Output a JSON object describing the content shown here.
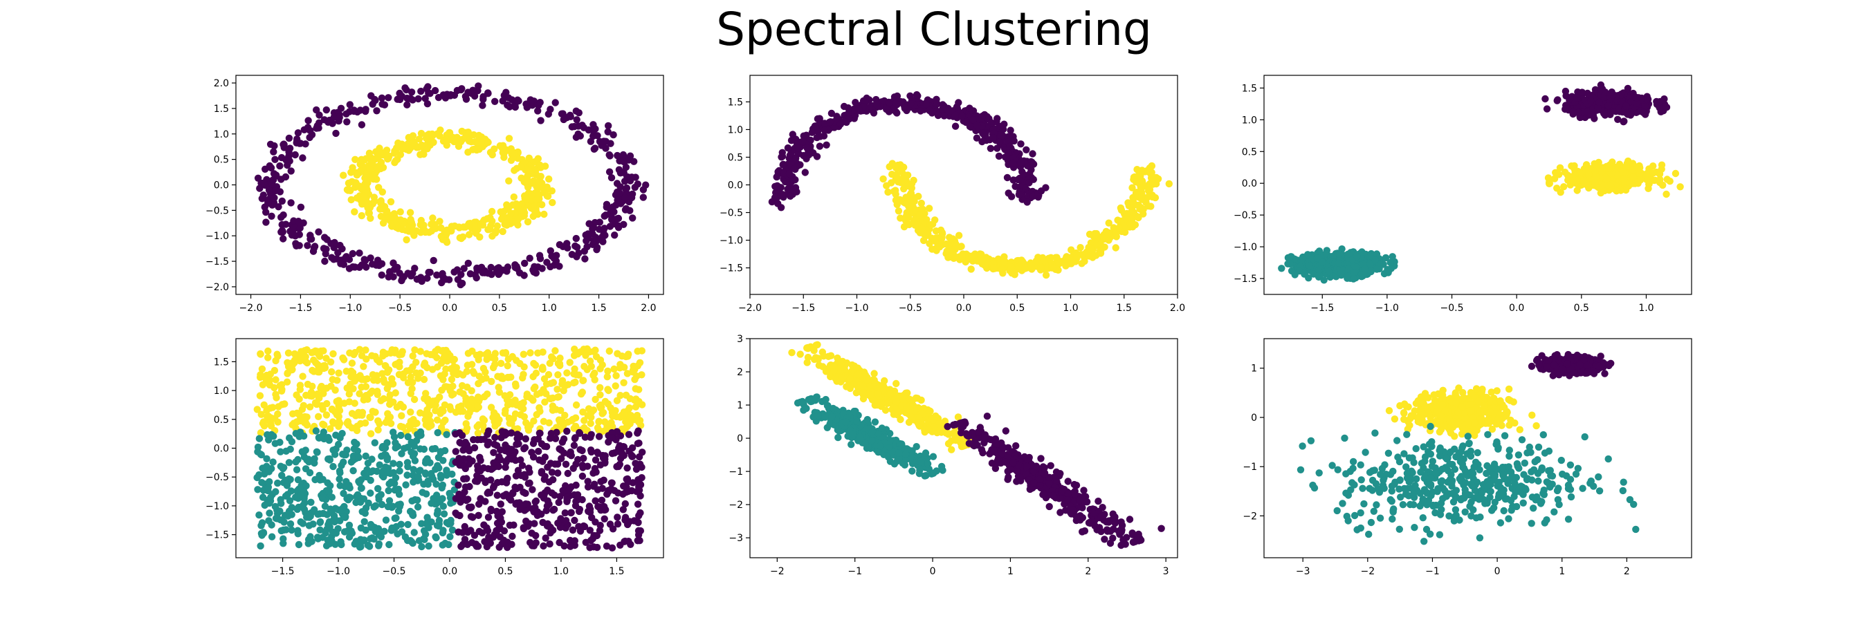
{
  "title": "Spectral Clustering",
  "colors": {
    "purple": "#440154",
    "teal": "#21918c",
    "yellow": "#fde725",
    "axis": "#000000"
  },
  "chart_data": [
    {
      "type": "scatter",
      "dataset": "concentric circles",
      "xlim": [
        -2.15,
        2.15
      ],
      "ylim": [
        -2.15,
        2.15
      ],
      "xticks": [
        -2.0,
        -1.5,
        -1.0,
        -0.5,
        0.0,
        0.5,
        1.0,
        1.5,
        2.0
      ],
      "yticks": [
        -2.0,
        -1.5,
        -1.0,
        -0.5,
        0.0,
        0.5,
        1.0,
        1.5,
        2.0
      ],
      "clusters": [
        {
          "color": "purple",
          "shape": "ring",
          "center": [
            0,
            0
          ],
          "rx": 1.78,
          "ry": 1.78,
          "noise": 0.09,
          "n": 500
        },
        {
          "color": "yellow",
          "shape": "ring",
          "center": [
            0,
            0
          ],
          "rx": 0.88,
          "ry": 0.88,
          "noise": 0.09,
          "n": 500
        }
      ]
    },
    {
      "type": "scatter",
      "dataset": "two moons",
      "xlim": [
        -2.0,
        2.0
      ],
      "ylim": [
        -1.98,
        1.98
      ],
      "xticks": [
        -2.0,
        -1.5,
        -1.0,
        -0.5,
        0.0,
        0.5,
        1.0,
        1.5,
        2.0
      ],
      "yticks": [
        -1.5,
        -1.0,
        -0.5,
        0.0,
        0.5,
        1.0,
        1.5
      ],
      "clusters": [
        {
          "color": "purple",
          "shape": "arc",
          "center": [
            -0.55,
            -0.3
          ],
          "rx": 1.15,
          "ry": 1.78,
          "a0": 0,
          "a1": 180,
          "noise": 0.07,
          "n": 500
        },
        {
          "color": "yellow",
          "shape": "arc",
          "center": [
            0.55,
            0.3
          ],
          "rx": 1.15,
          "ry": 1.78,
          "a0": 180,
          "a1": 360,
          "noise": 0.07,
          "n": 500
        }
      ]
    },
    {
      "type": "scatter",
      "dataset": "anisotropic blobs",
      "xlim": [
        -1.95,
        1.35
      ],
      "ylim": [
        -1.75,
        1.7
      ],
      "xticks": [
        -1.5,
        -1.0,
        -0.5,
        0.0,
        0.5,
        1.0
      ],
      "yticks": [
        -1.5,
        -1.0,
        -0.5,
        0.0,
        0.5,
        1.0,
        1.5
      ],
      "clusters": [
        {
          "color": "purple",
          "shape": "blob",
          "center": [
            0.72,
            1.25
          ],
          "sx": 0.17,
          "sy": 0.09,
          "n": 450
        },
        {
          "color": "yellow",
          "shape": "blob",
          "center": [
            0.72,
            0.1
          ],
          "sx": 0.17,
          "sy": 0.09,
          "n": 450
        },
        {
          "color": "teal",
          "shape": "blob",
          "center": [
            -1.38,
            -1.28
          ],
          "sx": 0.17,
          "sy": 0.09,
          "n": 450
        }
      ]
    },
    {
      "type": "scatter",
      "dataset": "uniform square",
      "xlim": [
        -1.92,
        1.92
      ],
      "ylim": [
        -1.9,
        1.9
      ],
      "xticks": [
        -1.5,
        -1.0,
        -0.5,
        0.0,
        0.5,
        1.0,
        1.5
      ],
      "yticks": [
        -1.5,
        -1.0,
        -0.5,
        0.0,
        0.5,
        1.0,
        1.5
      ],
      "clusters": [
        {
          "color": "yellow",
          "shape": "region",
          "xrange": [
            -1.73,
            1.73
          ],
          "yrange": [
            0.25,
            1.73
          ],
          "n": 750
        },
        {
          "color": "teal",
          "shape": "region",
          "xrange": [
            -1.73,
            0.05
          ],
          "yrange": [
            -1.73,
            0.3
          ],
          "n": 520
        },
        {
          "color": "purple",
          "shape": "region",
          "xrange": [
            0.05,
            1.73
          ],
          "yrange": [
            -1.73,
            0.3
          ],
          "n": 520
        }
      ]
    },
    {
      "type": "scatter",
      "dataset": "elongated diagonal blobs",
      "xlim": [
        -2.35,
        3.15
      ],
      "ylim": [
        -3.6,
        3.0
      ],
      "xticks": [
        -2,
        -1,
        0,
        1,
        2,
        3
      ],
      "yticks": [
        -3,
        -2,
        -1,
        0,
        1,
        2,
        3
      ],
      "clusters": [
        {
          "color": "yellow",
          "shape": "line",
          "from": [
            -1.5,
            2.5
          ],
          "to": [
            0.3,
            0.0
          ],
          "width": 0.12,
          "n": 400
        },
        {
          "color": "teal",
          "shape": "line",
          "from": [
            -1.5,
            1.0
          ],
          "to": [
            -0.1,
            -0.9
          ],
          "width": 0.12,
          "n": 400
        },
        {
          "color": "purple",
          "shape": "line",
          "from": [
            0.5,
            0.2
          ],
          "to": [
            2.4,
            -2.9
          ],
          "width": 0.13,
          "n": 400
        }
      ]
    },
    {
      "type": "scatter",
      "dataset": "blobs with varied variance",
      "xlim": [
        -3.6,
        3.0
      ],
      "ylim": [
        -2.85,
        1.6
      ],
      "xticks": [
        -3,
        -2,
        -1,
        0,
        1,
        2
      ],
      "yticks": [
        -2,
        -1,
        0,
        1
      ],
      "clusters": [
        {
          "color": "purple",
          "shape": "blob",
          "center": [
            1.15,
            1.07
          ],
          "sx": 0.22,
          "sy": 0.08,
          "n": 350
        },
        {
          "color": "yellow",
          "shape": "blob",
          "center": [
            -0.55,
            0.1
          ],
          "sx": 0.38,
          "sy": 0.2,
          "n": 450
        },
        {
          "color": "teal",
          "shape": "blob",
          "center": [
            -0.55,
            -1.3
          ],
          "sx": 0.95,
          "sy": 0.45,
          "n": 450
        }
      ]
    }
  ]
}
